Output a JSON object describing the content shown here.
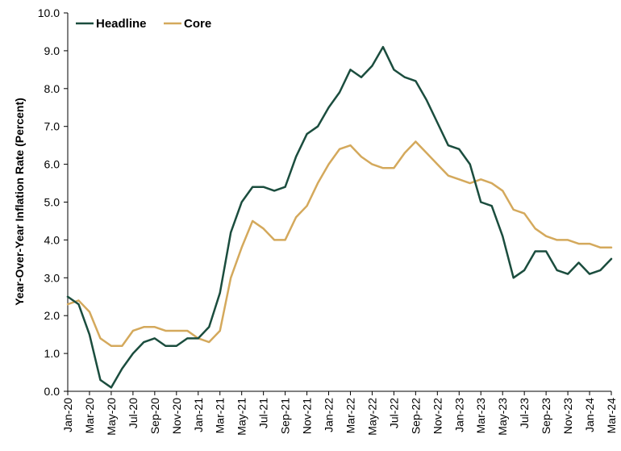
{
  "chart_data": {
    "type": "line",
    "title": "",
    "xlabel": "",
    "ylabel": "Year-Over-Year Inflation Rate (Percent)",
    "ylim": [
      0,
      10
    ],
    "yticks": [
      "0.0",
      "1.0",
      "2.0",
      "3.0",
      "4.0",
      "5.0",
      "6.0",
      "7.0",
      "8.0",
      "9.0",
      "10.0"
    ],
    "grid": false,
    "legend_position": "top-left",
    "x": [
      "Jan-20",
      "Feb-20",
      "Mar-20",
      "Apr-20",
      "May-20",
      "Jun-20",
      "Jul-20",
      "Aug-20",
      "Sep-20",
      "Oct-20",
      "Nov-20",
      "Dec-20",
      "Jan-21",
      "Feb-21",
      "Mar-21",
      "Apr-21",
      "May-21",
      "Jun-21",
      "Jul-21",
      "Aug-21",
      "Sep-21",
      "Oct-21",
      "Nov-21",
      "Dec-21",
      "Jan-22",
      "Feb-22",
      "Mar-22",
      "Apr-22",
      "May-22",
      "Jun-22",
      "Jul-22",
      "Aug-22",
      "Sep-22",
      "Oct-22",
      "Nov-22",
      "Dec-22",
      "Jan-23",
      "Feb-23",
      "Mar-23",
      "Apr-23",
      "May-23",
      "Jun-23",
      "Jul-23",
      "Aug-23",
      "Sep-23",
      "Oct-23",
      "Nov-23",
      "Dec-23",
      "Jan-24",
      "Feb-24",
      "Mar-24"
    ],
    "xtick_labels": [
      "Jan-20",
      "Mar-20",
      "May-20",
      "Jul-20",
      "Sep-20",
      "Nov-20",
      "Jan-21",
      "Mar-21",
      "May-21",
      "Jul-21",
      "Sep-21",
      "Nov-21",
      "Jan-22",
      "Mar-22",
      "May-22",
      "Jul-22",
      "Sep-22",
      "Nov-22",
      "Jan-23",
      "Mar-23",
      "May-23",
      "Jul-23",
      "Sep-23",
      "Nov-23",
      "Jan-24",
      "Mar-24"
    ],
    "series": [
      {
        "name": "Headline",
        "color": "#1b4d3e",
        "values": [
          2.5,
          2.3,
          1.5,
          0.3,
          0.1,
          0.6,
          1.0,
          1.3,
          1.4,
          1.2,
          1.2,
          1.4,
          1.4,
          1.7,
          2.6,
          4.2,
          5.0,
          5.4,
          5.4,
          5.3,
          5.4,
          6.2,
          6.8,
          7.0,
          7.5,
          7.9,
          8.5,
          8.3,
          8.6,
          9.1,
          8.5,
          8.3,
          8.2,
          7.7,
          7.1,
          6.5,
          6.4,
          6.0,
          5.0,
          4.9,
          4.1,
          3.0,
          3.2,
          3.7,
          3.7,
          3.2,
          3.1,
          3.4,
          3.1,
          3.2,
          3.5
        ]
      },
      {
        "name": "Core",
        "color": "#d4a95c",
        "values": [
          2.3,
          2.4,
          2.1,
          1.4,
          1.2,
          1.2,
          1.6,
          1.7,
          1.7,
          1.6,
          1.6,
          1.6,
          1.4,
          1.3,
          1.6,
          3.0,
          3.8,
          4.5,
          4.3,
          4.0,
          4.0,
          4.6,
          4.9,
          5.5,
          6.0,
          6.4,
          6.5,
          6.2,
          6.0,
          5.9,
          5.9,
          6.3,
          6.6,
          6.3,
          6.0,
          5.7,
          5.6,
          5.5,
          5.6,
          5.5,
          5.3,
          4.8,
          4.7,
          4.3,
          4.1,
          4.0,
          4.0,
          3.9,
          3.9,
          3.8,
          3.8
        ]
      }
    ]
  }
}
